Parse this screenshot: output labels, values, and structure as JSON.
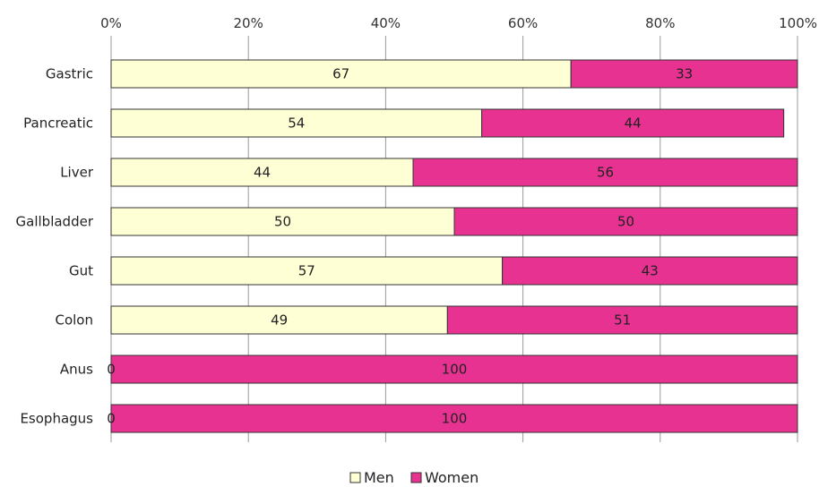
{
  "colors": {
    "men": "#ffffd6",
    "women": "#e83291",
    "grid": "#9a9a9a",
    "bar_stroke": "#333333"
  },
  "chart_data": {
    "type": "bar",
    "orientation": "horizontal",
    "stacked": "percent",
    "categories": [
      "Gastric",
      "Pancreatic",
      "Liver",
      "Gallbladder",
      "Gut",
      "Colon",
      "Anus",
      "Esophagus"
    ],
    "series": [
      {
        "name": "Men",
        "values": [
          67,
          54,
          44,
          50,
          57,
          49,
          0,
          0
        ]
      },
      {
        "name": "Women",
        "values": [
          33,
          44,
          56,
          50,
          43,
          51,
          100,
          100
        ]
      }
    ],
    "xticks": [
      "0%",
      "20%",
      "40%",
      "60%",
      "80%",
      "100%"
    ],
    "xlim": [
      0,
      100
    ],
    "xaxis_position": "top",
    "grid": true,
    "legend": "bottom-center"
  }
}
